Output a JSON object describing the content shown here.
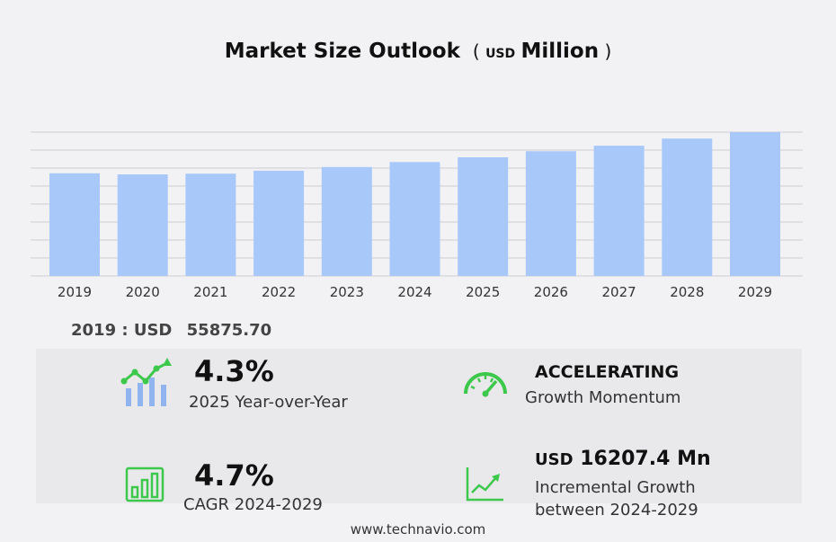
{
  "title": {
    "main": "Market Size Outlook",
    "unit_prefix": "USD",
    "unit": "Million"
  },
  "base_value": {
    "year": "2019",
    "currency": "USD",
    "value": "55875.70"
  },
  "kpis": {
    "yoy": {
      "value": "4.3%",
      "label": "2025 Year-over-Year",
      "icon": "bar-growth-icon"
    },
    "momentum": {
      "value": "ACCELERATING",
      "label": "Growth Momentum",
      "icon": "speedometer-icon"
    },
    "cagr": {
      "value": "4.7%",
      "label": "CAGR 2024-2029",
      "icon": "bar-chart-icon"
    },
    "incremental": {
      "currency": "USD",
      "value": "16207.4 Mn",
      "label_line1": "Incremental Growth",
      "label_line2": "between 2024-2029",
      "icon": "line-chart-icon"
    }
  },
  "footer": "www.technavio.com",
  "colors": {
    "bar": "#a8c8fa",
    "icon_green": "#3cc84a",
    "icon_blue": "#8fb4f0"
  },
  "chart_data": {
    "type": "bar",
    "categories": [
      "2019",
      "2020",
      "2021",
      "2022",
      "2023",
      "2024",
      "2025",
      "2026",
      "2027",
      "2028",
      "2029"
    ],
    "values": [
      55875.7,
      55300,
      55700,
      57300,
      59300,
      62000,
      64600,
      67900,
      70900,
      74800,
      78300
    ],
    "ylim": [
      0,
      78300
    ],
    "grid": true,
    "ylabel": "",
    "xlabel": ""
  }
}
